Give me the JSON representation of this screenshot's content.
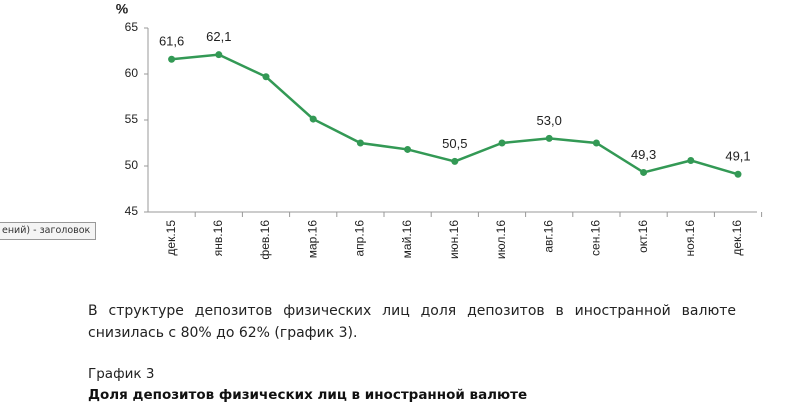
{
  "chart_data": {
    "type": "line",
    "ylabel": "%",
    "categories": [
      "дек.15",
      "янв.16",
      "фев.16",
      "мар.16",
      "апр.16",
      "май.16",
      "июн.16",
      "июл.16",
      "авг.16",
      "сен.16",
      "окт.16",
      "ноя.16",
      "дек.16"
    ],
    "values": [
      61.6,
      62.1,
      59.7,
      55.1,
      52.5,
      51.8,
      50.5,
      52.5,
      53.0,
      52.5,
      49.3,
      50.6,
      49.1
    ],
    "value_labels": [
      "61,6",
      "62,1",
      null,
      null,
      null,
      null,
      "50,5",
      null,
      "53,0",
      null,
      "49,3",
      null,
      "49,1"
    ],
    "color": "#339955",
    "ylim": [
      45,
      65
    ],
    "yticks": [
      45,
      50,
      55,
      60,
      65
    ],
    "grid": false
  },
  "document": {
    "tooltip": "ений) - заголовок",
    "paragraph": "В структуре депозитов физических лиц доля депозитов в иностранной валюте снизилась с 80% до 62% (график 3).",
    "caption_label": "График 3",
    "caption_title": "Доля депозитов физических лиц в иностранной валюте"
  }
}
